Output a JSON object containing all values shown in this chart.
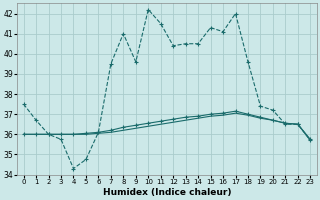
{
  "xlabel": "Humidex (Indice chaleur)",
  "background_color": "#cce8e8",
  "grid_color": "#aacccc",
  "line_color": "#1a6b6b",
  "xlim": [
    -0.5,
    23.5
  ],
  "ylim": [
    34,
    42.5
  ],
  "yticks": [
    34,
    35,
    36,
    37,
    38,
    39,
    40,
    41,
    42
  ],
  "xticks": [
    0,
    1,
    2,
    3,
    4,
    5,
    6,
    7,
    8,
    9,
    10,
    11,
    12,
    13,
    14,
    15,
    16,
    17,
    18,
    19,
    20,
    21,
    22,
    23
  ],
  "series1_x": [
    0,
    1,
    2,
    3,
    4,
    5,
    6,
    7,
    8,
    9,
    10,
    11,
    12,
    13,
    14,
    15,
    16,
    17,
    18,
    19,
    20,
    21,
    22,
    23
  ],
  "series1_y": [
    37.5,
    36.7,
    36.0,
    35.75,
    34.3,
    34.75,
    36.1,
    39.5,
    41.0,
    39.6,
    42.2,
    41.5,
    40.4,
    40.5,
    40.5,
    41.3,
    41.1,
    42.0,
    39.6,
    37.4,
    37.2,
    36.5,
    36.5,
    35.7
  ],
  "series2_x": [
    0,
    1,
    2,
    3,
    4,
    5,
    6,
    7,
    8,
    9,
    10,
    11,
    12,
    13,
    14,
    15,
    16,
    17,
    18,
    19,
    20,
    21,
    22,
    23
  ],
  "series2_y": [
    36.0,
    36.0,
    36.0,
    36.0,
    36.0,
    36.05,
    36.1,
    36.2,
    36.35,
    36.45,
    36.55,
    36.65,
    36.75,
    36.85,
    36.9,
    37.0,
    37.05,
    37.15,
    37.0,
    36.85,
    36.7,
    36.55,
    36.5,
    35.75
  ],
  "series3_x": [
    0,
    1,
    2,
    3,
    4,
    5,
    6,
    7,
    8,
    9,
    10,
    11,
    12,
    13,
    14,
    15,
    16,
    17,
    18,
    19,
    20,
    21,
    22,
    23
  ],
  "series3_y": [
    36.0,
    36.0,
    36.0,
    36.0,
    36.0,
    36.0,
    36.05,
    36.1,
    36.2,
    36.3,
    36.4,
    36.5,
    36.6,
    36.7,
    36.8,
    36.9,
    36.95,
    37.05,
    36.95,
    36.8,
    36.7,
    36.55,
    36.5,
    35.7
  ]
}
